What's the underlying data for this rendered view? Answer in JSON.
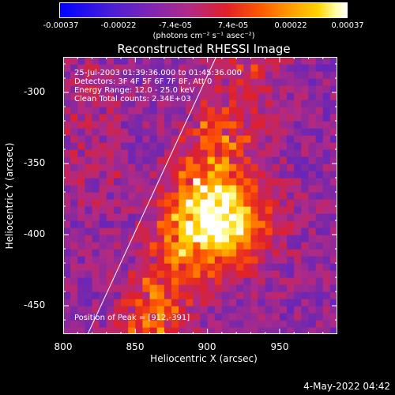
{
  "colorbar": {
    "ticks": [
      "-0.00037",
      "-0.00022",
      "-7.4e-05",
      "7.4e-05",
      "0.00022",
      "0.00037"
    ],
    "unit": "(photons cm⁻² s⁻¹ asec⁻²)"
  },
  "chart_data": {
    "type": "heatmap",
    "title": "Reconstructed RHESSI Image",
    "xlabel": "Heliocentric X (arcsec)",
    "ylabel": "Heliocentric Y (arcsec)",
    "xlim": [
      800,
      990
    ],
    "ylim": [
      -470,
      -275
    ],
    "x_ticks": [
      800,
      850,
      900,
      950
    ],
    "y_ticks": [
      -300,
      -350,
      -400,
      -450
    ],
    "value_range": [
      -0.00037,
      0.00037
    ],
    "peak": [
      912,
      -391
    ],
    "annotations": [
      "25-Jul-2003 01:39:36.000 to 01:45:36.000",
      "Detectors: 3F 4F 5F 6F 7F 8F, Att 0",
      "Energy Range: 12.0 - 25.0 keV",
      "Clean    Total counts: 2.34E+03"
    ],
    "peak_label": "Position of Peak = [912,-391]",
    "limb_line": [
      [
        817,
        -470
      ],
      [
        906,
        -275
      ]
    ]
  },
  "footer": {
    "timestamp": "4-May-2022 04:42"
  }
}
